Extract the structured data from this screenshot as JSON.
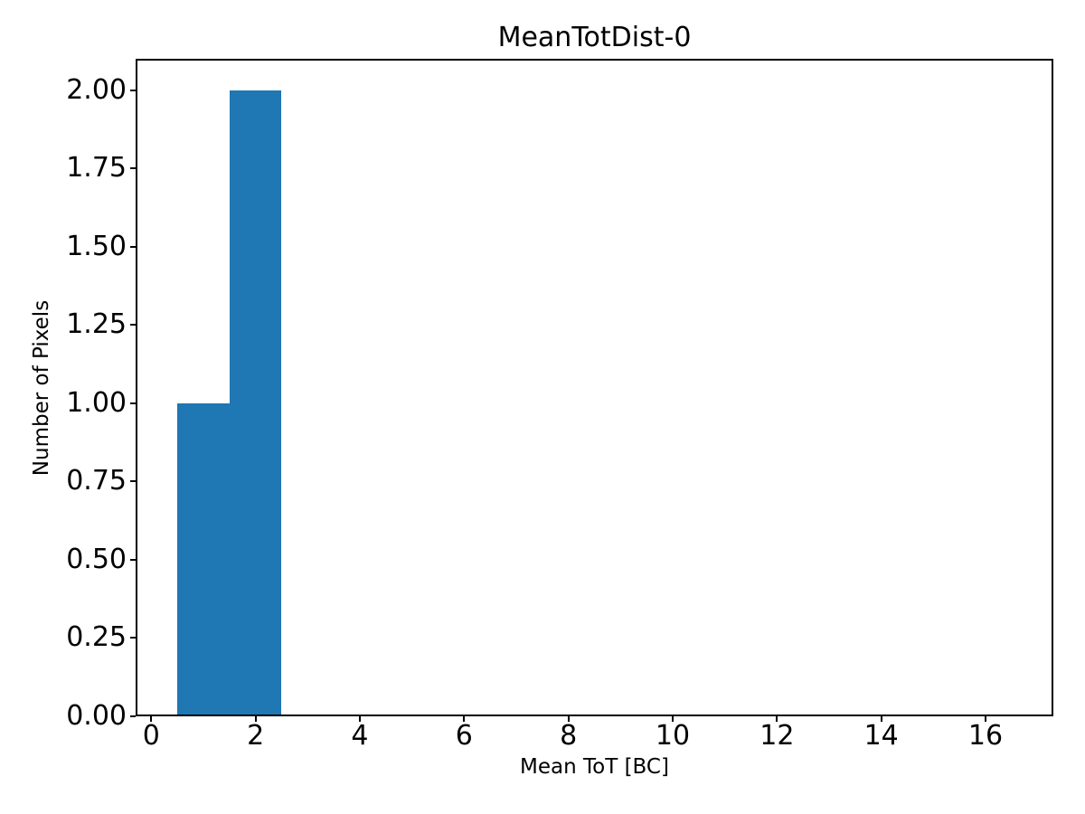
{
  "chart_data": {
    "type": "bar",
    "subtype": "histogram",
    "title": "MeanTotDist-0",
    "xlabel": "Mean ToT [BC]",
    "ylabel": "Number of Pixels",
    "bins": [
      {
        "x0": 0.5,
        "x1": 1.5,
        "count": 1
      },
      {
        "x0": 1.5,
        "x1": 2.5,
        "count": 2
      }
    ],
    "bar_color": "#1f77b4",
    "axis_color": "#000000",
    "background_color": "#ffffff",
    "xlim": [
      -0.3,
      17.3
    ],
    "ylim": [
      0,
      2.1
    ],
    "xticks": {
      "values": [
        0,
        2,
        4,
        6,
        8,
        10,
        12,
        14,
        16
      ],
      "labels": [
        "0",
        "2",
        "4",
        "6",
        "8",
        "10",
        "12",
        "14",
        "16"
      ]
    },
    "yticks": {
      "values": [
        0,
        0.25,
        0.5,
        0.75,
        1.0,
        1.25,
        1.5,
        1.75,
        2.0
      ],
      "labels": [
        "0.00",
        "0.25",
        "0.50",
        "0.75",
        "1.00",
        "1.25",
        "1.50",
        "1.75",
        "2.00"
      ]
    },
    "grid": false,
    "legend": "none"
  }
}
